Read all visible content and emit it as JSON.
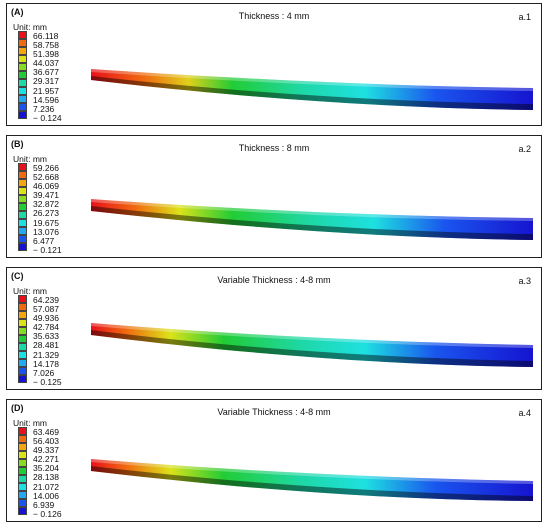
{
  "legend_colors": [
    "#e8101a",
    "#f06a10",
    "#f2a60f",
    "#dce21a",
    "#86dc20",
    "#22cc35",
    "#1ed8a8",
    "#1ee0e0",
    "#20aaf0",
    "#1a55ee",
    "#1614d0"
  ],
  "panels": [
    {
      "label": "(A)",
      "title": "Thickness : 4 mm",
      "tag": "a.1",
      "unit": "Unit: mm",
      "legend_values": [
        "66.118",
        "58.758",
        "51.398",
        "44.037",
        "36.677",
        "29.317",
        "21.957",
        "14.596",
        "7.236",
        "− 0.124"
      ]
    },
    {
      "label": "(B)",
      "title": "Thickness : 8 mm",
      "tag": "a.2",
      "unit": "Unit: mm",
      "legend_values": [
        "59.266",
        "52.668",
        "46.069",
        "39.471",
        "32.872",
        "26.273",
        "19.675",
        "13.076",
        "6.477",
        "− 0.121"
      ]
    },
    {
      "label": "(C)",
      "title": "Variable Thickness : 4-8 mm",
      "tag": "a.3",
      "unit": "Unit: mm",
      "legend_values": [
        "64.239",
        "57.087",
        "49.936",
        "42.784",
        "35.633",
        "28.481",
        "21.329",
        "14.178",
        "7.026",
        "− 0.125"
      ]
    },
    {
      "label": "(D)",
      "title": "Variable Thickness : 4-8 mm",
      "tag": "a.4",
      "unit": "Unit: mm",
      "legend_values": [
        "63.469",
        "56.403",
        "49.337",
        "42.271",
        "35.204",
        "28.138",
        "21.072",
        "14.006",
        "6.939",
        "− 0.126"
      ]
    }
  ]
}
